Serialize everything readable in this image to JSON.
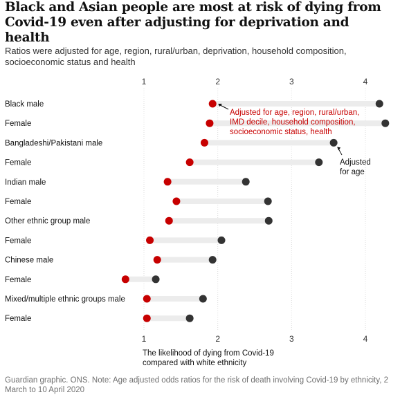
{
  "title": "Black and Asian people are most at risk of dying from Covid-19 even after adjusting for deprivation and health",
  "subtitle": "Ratios were adjusted for age, region, rural/urban, deprivation, household composition, socioeconomic status and health",
  "source": "Guardian graphic. ONS. Note: Age adjusted odds ratios for the risk of death involving Covid-19 by ethnicity, 2 March to 10 April 2020",
  "colors": {
    "fully_adjusted": "#c70000",
    "age_adjusted": "#333333",
    "range_bar": "#ececec"
  },
  "chart_data": {
    "type": "dumbbell",
    "title": "Black and Asian people are most at risk of dying from Covid-19 even after adjusting for deprivation and health",
    "xlabel": "The likelihood of dying from Covid-19 compared with white ethnicity",
    "x_ticks": [
      1,
      2,
      3,
      4
    ],
    "xlim": [
      0.2,
      4.35
    ],
    "series": [
      {
        "name": "Adjusted for age, region, rural/urban, IMD decile, household composition, socioeconomic status, health",
        "key": "fully"
      },
      {
        "name": "Adjusted for age",
        "key": "age"
      }
    ],
    "categories": [
      {
        "group": "Black",
        "sex": "male",
        "fully": 1.93,
        "age": 4.19
      },
      {
        "group": "",
        "sex": "Female",
        "fully": 1.89,
        "age": 4.27
      },
      {
        "group": "Bangladeshi/Pakistani",
        "sex": "male",
        "fully": 1.82,
        "age": 3.57
      },
      {
        "group": "",
        "sex": "Female",
        "fully": 1.62,
        "age": 3.37
      },
      {
        "group": "Indian",
        "sex": "male",
        "fully": 1.32,
        "age": 2.38
      },
      {
        "group": "",
        "sex": "Female",
        "fully": 1.44,
        "age": 2.68
      },
      {
        "group": "Other ethnic group",
        "sex": "male",
        "fully": 1.34,
        "age": 2.69
      },
      {
        "group": "",
        "sex": "Female",
        "fully": 1.08,
        "age": 2.05
      },
      {
        "group": "Chinese",
        "sex": "male",
        "fully": 1.18,
        "age": 1.93
      },
      {
        "group": "",
        "sex": "Female",
        "fully": 0.75,
        "age": 1.16
      },
      {
        "group": "Mixed/multiple ethnic groups",
        "sex": "male",
        "fully": 1.04,
        "age": 1.8
      },
      {
        "group": "",
        "sex": "Female",
        "fully": 1.04,
        "age": 1.62
      }
    ],
    "annotations": {
      "fully_label": [
        "Adjusted for age, region, rural/urban,",
        "IMD decile, household composition,",
        "socioeconomic status, health"
      ],
      "age_label": [
        "Adjusted",
        "for age"
      ]
    }
  }
}
